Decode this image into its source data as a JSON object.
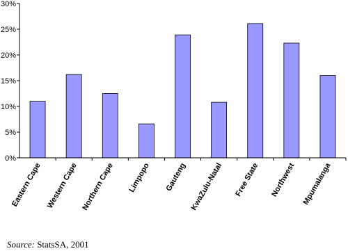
{
  "chart_data": {
    "type": "bar",
    "categories": [
      "Eastern Cape",
      "Western Cape",
      "Northern Cape",
      "Limpopo",
      "Gauteng",
      "KwaZulu-Natal",
      "Free State",
      "Northwest",
      "Mpumalanga"
    ],
    "values": [
      11,
      16.2,
      12.5,
      6.6,
      23.9,
      10.8,
      26.1,
      22.3,
      16
    ],
    "color": "#9999ff",
    "ylim": [
      0,
      30
    ],
    "yticks": [
      {
        "value": 0,
        "label": "0%"
      },
      {
        "value": 5,
        "label": "5%"
      },
      {
        "value": 10,
        "label": "10%"
      },
      {
        "value": 15,
        "label": "15%"
      },
      {
        "value": 20,
        "label": "20%"
      },
      {
        "value": 25,
        "label": "25%"
      },
      {
        "value": 30,
        "label": "30%"
      }
    ],
    "grid": false,
    "source": {
      "label": "Source:",
      "text": "StatsSA, 2001"
    }
  }
}
